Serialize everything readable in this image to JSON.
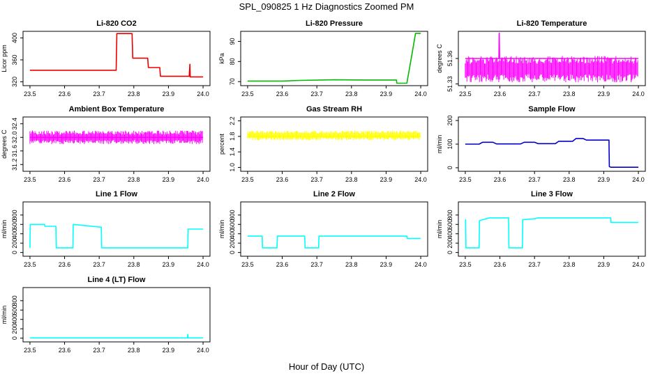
{
  "title": "SPL_090825  1 Hz Diagnostics Zoomed PM",
  "xlabel": "Hour of Day (UTC)",
  "chart_data": [
    {
      "type": "line",
      "title": "Li-820 CO2",
      "ylabel": "Licor ppm",
      "color": "#ee0000",
      "xlim": [
        23.48,
        24.02
      ],
      "ylim": [
        313,
        412
      ],
      "xticks": [
        23.5,
        23.6,
        23.7,
        23.8,
        23.9,
        24.0
      ],
      "xtick_labels": [
        "23.5",
        "23.6",
        "23.7",
        "23.8",
        "23.9",
        "24.0"
      ],
      "yticks": [
        320,
        360,
        400
      ],
      "ytick_labels": [
        "320",
        "360",
        "400"
      ],
      "series": [
        {
          "x": [
            23.5,
            23.749,
            23.751,
            23.795,
            23.797,
            23.84,
            23.842,
            23.875,
            23.877,
            23.96,
            23.962,
            23.963,
            24.0
          ],
          "y": [
            341,
            341,
            408,
            408,
            363,
            363,
            346,
            346,
            330,
            330,
            352,
            329,
            329
          ]
        }
      ]
    },
    {
      "type": "line",
      "title": "Li-820 Pressure",
      "ylabel": "kPa",
      "color": "#00bb00",
      "xlim": [
        23.48,
        24.02
      ],
      "ylim": [
        68,
        95
      ],
      "xticks": [
        23.5,
        23.6,
        23.7,
        23.8,
        23.9,
        24.0
      ],
      "xtick_labels": [
        "23.5",
        "23.6",
        "23.7",
        "23.8",
        "23.9",
        "24.0"
      ],
      "yticks": [
        70,
        80,
        90
      ],
      "ytick_labels": [
        "70",
        "80",
        "90"
      ],
      "series": [
        {
          "x": [
            23.5,
            23.6,
            23.65,
            23.75,
            23.85,
            23.93,
            23.931,
            23.96,
            23.975,
            23.985,
            24.0
          ],
          "y": [
            70.3,
            70.3,
            70.6,
            70.9,
            70.8,
            70.8,
            69.2,
            69.2,
            84,
            94,
            94
          ]
        }
      ]
    },
    {
      "type": "line",
      "title": "Li-820 Temperature",
      "ylabel": "degrees C",
      "color": "#ff00ff",
      "xlim": [
        23.48,
        24.02
      ],
      "ylim": [
        51.328,
        51.392
      ],
      "xticks": [
        23.5,
        23.6,
        23.7,
        23.8,
        23.9,
        24.0
      ],
      "xtick_labels": [
        "23.5",
        "23.6",
        "23.7",
        "23.8",
        "23.9",
        "24.0"
      ],
      "yticks": [
        51.33,
        51.36
      ],
      "ytick_labels": [
        "51.33",
        "51.36"
      ],
      "series": [
        {
          "x": [
            23.5,
            23.597,
            23.598,
            23.599,
            24.0
          ],
          "y": [
            51.36,
            51.36,
            51.39,
            51.36,
            51.36
          ]
        }
      ],
      "noise_band": [
        51.332,
        51.363
      ]
    },
    {
      "type": "line",
      "title": "Ambient Box Temperature",
      "ylabel": "degrees C",
      "color": "#ff00ff",
      "xlim": [
        23.48,
        24.02
      ],
      "ylim": [
        31.0,
        32.6
      ],
      "xticks": [
        23.5,
        23.6,
        23.7,
        23.8,
        23.9,
        24.0
      ],
      "xtick_labels": [
        "23.5",
        "23.6",
        "23.7",
        "23.8",
        "23.9",
        "24.0"
      ],
      "yticks": [
        31.2,
        31.6,
        32.0,
        32.4
      ],
      "ytick_labels": [
        "31.2",
        "31.6",
        "32.0",
        "32.4"
      ],
      "series": [
        {
          "x": [
            23.5,
            24.0
          ],
          "y": [
            32.0,
            32.0
          ]
        }
      ],
      "noise_band": [
        31.8,
        32.2
      ]
    },
    {
      "type": "line",
      "title": "Gas Stream RH",
      "ylabel": "percent",
      "color": "#ffff00",
      "xlim": [
        23.48,
        24.02
      ],
      "ylim": [
        0.9,
        2.3
      ],
      "xticks": [
        23.5,
        23.6,
        23.7,
        23.8,
        23.9,
        24.0
      ],
      "xtick_labels": [
        "23.5",
        "23.6",
        "23.7",
        "23.8",
        "23.9",
        "24.0"
      ],
      "yticks": [
        1.0,
        1.4,
        1.8,
        2.2
      ],
      "ytick_labels": [
        "1.0",
        "1.4",
        "1.8",
        "2.2"
      ],
      "series": [
        {
          "x": [
            23.5,
            24.0
          ],
          "y": [
            1.8,
            1.8
          ]
        }
      ],
      "noise_band": [
        1.7,
        1.95
      ]
    },
    {
      "type": "line",
      "title": "Sample Flow",
      "ylabel": "ml/min",
      "color": "#0000cc",
      "xlim": [
        23.48,
        24.02
      ],
      "ylim": [
        -15,
        215
      ],
      "xticks": [
        23.5,
        23.6,
        23.7,
        23.8,
        23.9,
        24.0
      ],
      "xtick_labels": [
        "23.5",
        "23.6",
        "23.7",
        "23.8",
        "23.9",
        "24.0"
      ],
      "yticks": [
        0,
        100,
        200
      ],
      "ytick_labels": [
        "0",
        "100",
        "200"
      ],
      "series": [
        {
          "x": [
            23.5,
            23.54,
            23.55,
            23.58,
            23.59,
            23.66,
            23.67,
            23.7,
            23.71,
            23.76,
            23.77,
            23.81,
            23.82,
            23.84,
            23.85,
            23.915,
            23.916,
            23.92,
            24.0
          ],
          "y": [
            100,
            100,
            108,
            108,
            101,
            101,
            108,
            108,
            102,
            102,
            112,
            112,
            124,
            124,
            117,
            117,
            5,
            2,
            2
          ]
        }
      ]
    },
    {
      "type": "line",
      "title": "Line 1 Flow",
      "ylabel": "ml/min",
      "color": "#00ffff",
      "xlim": [
        23.48,
        24.02
      ],
      "ylim": [
        -80,
        1080
      ],
      "xticks": [
        23.5,
        23.6,
        23.7,
        23.8,
        23.9,
        24.0
      ],
      "xtick_labels": [
        "23.5",
        "23.6",
        "23.7",
        "23.8",
        "23.9",
        "24.0"
      ],
      "yticks": [
        0,
        200,
        400,
        600,
        800
      ],
      "ytick_labels": [
        "0",
        "200",
        "400",
        "600",
        "800"
      ],
      "series": [
        {
          "x": [
            23.5,
            23.501,
            23.542,
            23.543,
            23.575,
            23.576,
            23.624,
            23.625,
            23.706,
            23.707,
            23.956,
            23.957,
            24.0
          ],
          "y": [
            100,
            600,
            600,
            560,
            560,
            100,
            100,
            600,
            540,
            100,
            100,
            500,
            500
          ]
        }
      ]
    },
    {
      "type": "line",
      "title": "Line 2 Flow",
      "ylabel": "ml/min",
      "color": "#00ffff",
      "xlim": [
        23.48,
        24.02
      ],
      "ylim": [
        -80,
        1080
      ],
      "xticks": [
        23.5,
        23.6,
        23.7,
        23.8,
        23.9,
        24.0
      ],
      "xtick_labels": [
        "23.5",
        "23.6",
        "23.7",
        "23.8",
        "23.9",
        "24.0"
      ],
      "yticks": [
        0,
        200,
        400,
        600,
        800
      ],
      "ytick_labels": [
        "0",
        "200",
        "400",
        "600",
        "800"
      ],
      "series": [
        {
          "x": [
            23.5,
            23.542,
            23.543,
            23.585,
            23.586,
            23.665,
            23.666,
            23.705,
            23.706,
            23.96,
            23.961,
            24.0
          ],
          "y": [
            350,
            350,
            100,
            100,
            350,
            350,
            100,
            100,
            350,
            350,
            300,
            300
          ]
        }
      ]
    },
    {
      "type": "line",
      "title": "Line 3 Flow",
      "ylabel": "ml/min",
      "color": "#00ffff",
      "xlim": [
        23.48,
        24.02
      ],
      "ylim": [
        -80,
        1080
      ],
      "xticks": [
        23.5,
        23.6,
        23.7,
        23.8,
        23.9,
        24.0
      ],
      "xtick_labels": [
        "23.5",
        "23.6",
        "23.7",
        "23.8",
        "23.9",
        "24.0"
      ],
      "yticks": [
        0,
        200,
        400,
        600,
        800
      ],
      "ytick_labels": [
        "0",
        "200",
        "400",
        "600",
        "800"
      ],
      "series": [
        {
          "x": [
            23.5,
            23.501,
            23.502,
            23.54,
            23.541,
            23.56,
            23.57,
            23.625,
            23.626,
            23.665,
            23.666,
            23.7,
            23.71,
            23.92,
            23.921,
            24.0
          ],
          "y": [
            700,
            700,
            100,
            100,
            680,
            720,
            740,
            740,
            100,
            100,
            700,
            720,
            740,
            740,
            640,
            640
          ]
        }
      ]
    },
    {
      "type": "line",
      "title": "Line 4 (LT) Flow",
      "ylabel": "ml/min",
      "color": "#00ffff",
      "xlim": [
        23.48,
        24.02
      ],
      "ylim": [
        -80,
        1080
      ],
      "xticks": [
        23.5,
        23.6,
        23.7,
        23.8,
        23.9,
        24.0
      ],
      "xtick_labels": [
        "23.5",
        "23.6",
        "23.7",
        "23.8",
        "23.9",
        "24.0"
      ],
      "yticks": [
        0,
        200,
        400,
        600,
        800
      ],
      "ytick_labels": [
        "0",
        "200",
        "400",
        "600",
        "800"
      ],
      "series": [
        {
          "x": [
            23.5,
            23.955,
            23.956,
            23.957,
            24.0
          ],
          "y": [
            5,
            5,
            80,
            5,
            5
          ]
        }
      ]
    }
  ]
}
